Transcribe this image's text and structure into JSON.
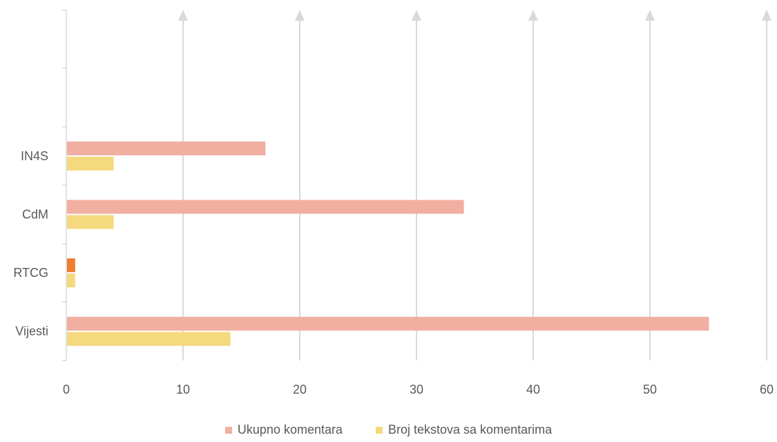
{
  "chart_data": {
    "type": "bar",
    "orientation": "horizontal",
    "categories": [
      "Vijesti",
      "RTCG",
      "CdM",
      "IN4S"
    ],
    "series": [
      {
        "name": "Ukupno komentara",
        "values": [
          55,
          0.7,
          34,
          17
        ],
        "color": "#F0AFA1"
      },
      {
        "name": "Broj tekstova sa komentarima",
        "values": [
          14,
          0.7,
          4,
          4
        ],
        "color": "#F5D97E"
      }
    ],
    "highlight_color": "#ED7D31",
    "xlim": [
      0,
      60
    ],
    "xticks": [
      "0",
      "10",
      "20",
      "30",
      "40",
      "50",
      "60"
    ],
    "grid": true,
    "legend_position": "bottom"
  }
}
